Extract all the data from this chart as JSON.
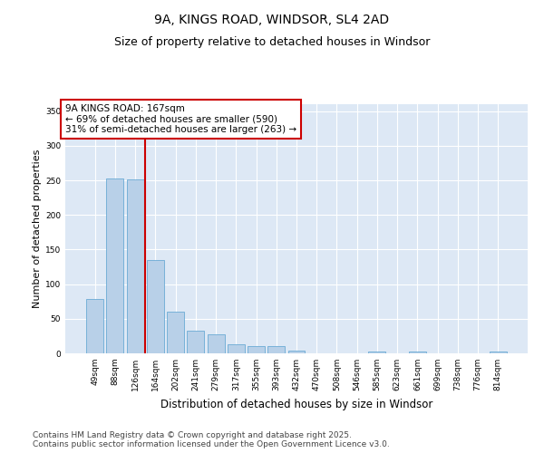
{
  "title": "9A, KINGS ROAD, WINDSOR, SL4 2AD",
  "subtitle": "Size of property relative to detached houses in Windsor",
  "xlabel": "Distribution of detached houses by size in Windsor",
  "ylabel": "Number of detached properties",
  "categories": [
    "49sqm",
    "88sqm",
    "126sqm",
    "164sqm",
    "202sqm",
    "241sqm",
    "279sqm",
    "317sqm",
    "355sqm",
    "393sqm",
    "432sqm",
    "470sqm",
    "508sqm",
    "546sqm",
    "585sqm",
    "623sqm",
    "661sqm",
    "699sqm",
    "738sqm",
    "776sqm",
    "814sqm"
  ],
  "values": [
    79,
    252,
    251,
    135,
    60,
    33,
    28,
    13,
    11,
    10,
    4,
    0,
    0,
    0,
    3,
    0,
    2,
    0,
    0,
    0,
    2
  ],
  "bar_color": "#b8d0e8",
  "bar_edge_color": "#6aaad4",
  "vline_color": "#cc0000",
  "annotation_text": "9A KINGS ROAD: 167sqm\n← 69% of detached houses are smaller (590)\n31% of semi-detached houses are larger (263) →",
  "annotation_box_color": "#ffffff",
  "annotation_box_edge_color": "#cc0000",
  "ylim": [
    0,
    360
  ],
  "yticks": [
    0,
    50,
    100,
    150,
    200,
    250,
    300,
    350
  ],
  "bg_color": "#ffffff",
  "plot_bg_color": "#dde8f5",
  "grid_color": "#ffffff",
  "footer_line1": "Contains HM Land Registry data © Crown copyright and database right 2025.",
  "footer_line2": "Contains public sector information licensed under the Open Government Licence v3.0.",
  "title_fontsize": 10,
  "subtitle_fontsize": 9,
  "xlabel_fontsize": 8.5,
  "ylabel_fontsize": 8,
  "tick_fontsize": 6.5,
  "annotation_fontsize": 7.5,
  "footer_fontsize": 6.5
}
